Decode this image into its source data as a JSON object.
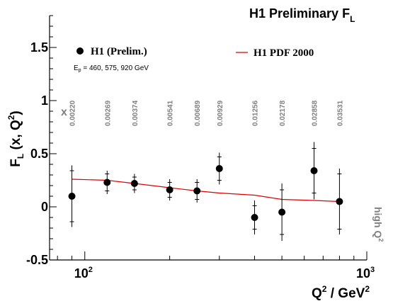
{
  "chart_data": {
    "type": "scatter",
    "title": "H1 Preliminary F",
    "title_subscript": "L",
    "ylabel": "F",
    "ylabel_sub": "L",
    "ylabel_rest": " (x, Q",
    "ylabel_sup": "2",
    "ylabel_close": ")",
    "xlabel": "Q",
    "xlabel_sup": "2",
    "xlabel_rest": " / GeV",
    "xlabel_sup2": "2",
    "x_scale": "log",
    "xlim": [
      75,
      1000
    ],
    "ylim": [
      -0.5,
      1.8
    ],
    "x_tick_labels": [
      {
        "value": 100,
        "base": "10",
        "exp": "2"
      },
      {
        "value": 1000,
        "base": "10",
        "exp": "3"
      }
    ],
    "y_tick_labels": [
      {
        "value": -0.5,
        "label": "-0.5"
      },
      {
        "value": 0,
        "label": "0"
      },
      {
        "value": 0.5,
        "label": "0.5"
      },
      {
        "value": 1,
        "label": "1"
      },
      {
        "value": 1.5,
        "label": "1.5"
      }
    ],
    "grid": false,
    "legend_placement": "top",
    "series": [
      {
        "name": "H1 (Prelim.)",
        "marker": "circle",
        "color": "#000000",
        "points": [
          {
            "q2": 90,
            "y": 0.1,
            "stat": 0.24,
            "tot": 0.29,
            "x_label": "0.00220"
          },
          {
            "q2": 120,
            "y": 0.23,
            "stat": 0.08,
            "tot": 0.11,
            "x_label": "0.00269"
          },
          {
            "q2": 150,
            "y": 0.22,
            "stat": 0.06,
            "tot": 0.09,
            "x_label": "0.00374"
          },
          {
            "q2": 200,
            "y": 0.16,
            "stat": 0.07,
            "tot": 0.1,
            "x_label": "0.00541"
          },
          {
            "q2": 250,
            "y": 0.15,
            "stat": 0.08,
            "tot": 0.11,
            "x_label": "0.00689"
          },
          {
            "q2": 300,
            "y": 0.36,
            "stat": 0.11,
            "tot": 0.15,
            "x_label": "0.00929"
          },
          {
            "q2": 400,
            "y": -0.1,
            "stat": 0.11,
            "tot": 0.16,
            "x_label": "0.01256"
          },
          {
            "q2": 500,
            "y": -0.05,
            "stat": 0.21,
            "tot": 0.27,
            "x_label": "0.02178"
          },
          {
            "q2": 650,
            "y": 0.34,
            "stat": 0.21,
            "tot": 0.27,
            "x_label": "0.02858"
          },
          {
            "q2": 800,
            "y": 0.05,
            "stat": 0.26,
            "tot": 0.31,
            "x_label": "0.03531"
          }
        ]
      },
      {
        "name": "H1 PDF 2000",
        "marker": "line",
        "color": "#e00000",
        "x": [
          90,
          120,
          150,
          200,
          250,
          300,
          400,
          500,
          650,
          800
        ],
        "y": [
          0.26,
          0.25,
          0.22,
          0.18,
          0.15,
          0.13,
          0.11,
          0.07,
          0.06,
          0.05
        ]
      }
    ],
    "annotations": {
      "beam_energy": "E",
      "beam_energy_sub": "p",
      "beam_energy_rest": " = 460, 575, 920 GeV",
      "x_marker": "x",
      "high_q2": "high Q",
      "high_q2_sup": "2"
    }
  }
}
